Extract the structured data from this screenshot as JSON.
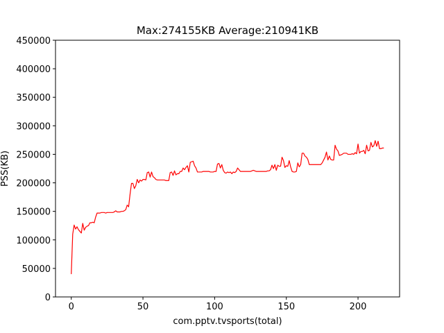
{
  "chart_data": {
    "type": "line",
    "title": "Max:274155KB Average:210941KB",
    "xlabel": "com.pptv.tvsports(total)",
    "ylabel": "PSS(KB)",
    "xlim": [
      -11,
      229
    ],
    "ylim": [
      0,
      450000
    ],
    "xticks": [
      0,
      50,
      100,
      150,
      200
    ],
    "yticks": [
      0,
      50000,
      100000,
      150000,
      200000,
      250000,
      300000,
      350000,
      400000,
      450000
    ],
    "grid": false,
    "series": [
      {
        "color": "#ff0000",
        "x": [
          0,
          1,
          2,
          3,
          4,
          5,
          6,
          7,
          8,
          9,
          10,
          11,
          12,
          13,
          14,
          15,
          16,
          17,
          18,
          19,
          20,
          21,
          22,
          23,
          24,
          25,
          26,
          27,
          28,
          29,
          30,
          31,
          32,
          33,
          34,
          35,
          36,
          37,
          38,
          39,
          40,
          41,
          42,
          43,
          44,
          45,
          46,
          47,
          48,
          49,
          50,
          51,
          52,
          53,
          54,
          55,
          56,
          57,
          58,
          59,
          60,
          61,
          62,
          63,
          64,
          65,
          66,
          67,
          68,
          69,
          70,
          71,
          72,
          73,
          74,
          75,
          76,
          77,
          78,
          79,
          80,
          81,
          82,
          83,
          84,
          85,
          86,
          87,
          88,
          89,
          90,
          91,
          92,
          93,
          94,
          95,
          96,
          97,
          98,
          99,
          100,
          101,
          102,
          103,
          104,
          105,
          106,
          107,
          108,
          109,
          110,
          111,
          112,
          113,
          114,
          115,
          116,
          117,
          118,
          119,
          120,
          121,
          122,
          123,
          124,
          125,
          126,
          127,
          128,
          129,
          130,
          131,
          132,
          133,
          134,
          135,
          136,
          137,
          138,
          139,
          140,
          141,
          142,
          143,
          144,
          145,
          146,
          147,
          148,
          149,
          150,
          151,
          152,
          153,
          154,
          155,
          156,
          157,
          158,
          159,
          160,
          161,
          162,
          163,
          164,
          165,
          166,
          167,
          168,
          169,
          170,
          171,
          172,
          173,
          174,
          175,
          176,
          177,
          178,
          179,
          180,
          181,
          182,
          183,
          184,
          185,
          186,
          187,
          188,
          189,
          190,
          191,
          192,
          193,
          194,
          195,
          196,
          197,
          198,
          199,
          200,
          201,
          202,
          203,
          204,
          205,
          206,
          207,
          208,
          209,
          210,
          211,
          212,
          213,
          214,
          215,
          216,
          217,
          218
        ],
        "y": [
          40000,
          110000,
          126000,
          119000,
          123000,
          118000,
          115000,
          112000,
          129000,
          117000,
          122000,
          124000,
          125000,
          130000,
          130000,
          131000,
          130000,
          140000,
          147000,
          147000,
          147000,
          148000,
          148000,
          148000,
          147000,
          148000,
          148000,
          148000,
          148000,
          148000,
          149000,
          151000,
          149000,
          149000,
          149000,
          150000,
          150000,
          151000,
          153000,
          161000,
          158000,
          180000,
          199000,
          199000,
          190000,
          195000,
          206000,
          200000,
          205000,
          203000,
          206000,
          206000,
          205000,
          218000,
          219000,
          210000,
          219000,
          211000,
          209000,
          206000,
          205000,
          205000,
          205000,
          205000,
          205000,
          205000,
          204000,
          204000,
          204000,
          218000,
          219000,
          213000,
          221000,
          214000,
          216000,
          216000,
          220000,
          220000,
          226000,
          223000,
          227000,
          230000,
          219000,
          236000,
          237000,
          238000,
          230000,
          226000,
          219000,
          219000,
          219000,
          219000,
          220000,
          220000,
          220000,
          220000,
          220000,
          219000,
          219000,
          219000,
          220000,
          220000,
          233000,
          234000,
          226000,
          232000,
          222000,
          218000,
          217000,
          219000,
          218000,
          219000,
          216000,
          219000,
          218000,
          220000,
          226000,
          223000,
          220000,
          220000,
          220000,
          220000,
          220000,
          220000,
          220000,
          220000,
          221000,
          222000,
          221000,
          220000,
          220000,
          220000,
          220000,
          220000,
          220000,
          220000,
          220000,
          221000,
          221000,
          223000,
          231000,
          225000,
          232000,
          222000,
          231000,
          229000,
          229000,
          245000,
          239000,
          227000,
          230000,
          229000,
          239000,
          228000,
          220000,
          219000,
          219000,
          220000,
          235000,
          228000,
          232000,
          252000,
          252000,
          247000,
          245000,
          241000,
          232000,
          232000,
          232000,
          232000,
          232000,
          232000,
          232000,
          232000,
          232000,
          235000,
          240000,
          245000,
          254000,
          240000,
          247000,
          241000,
          240000,
          240000,
          266000,
          259000,
          256000,
          248000,
          249000,
          250000,
          252000,
          252000,
          252000,
          250000,
          250000,
          250000,
          251000,
          250000,
          253000,
          251000,
          268000,
          252000,
          255000,
          255000,
          257000,
          251000,
          266000,
          256000,
          257000,
          271000,
          263000,
          265000,
          274000,
          264000,
          273000,
          260000,
          260000,
          261000,
          261000
        ]
      }
    ]
  }
}
